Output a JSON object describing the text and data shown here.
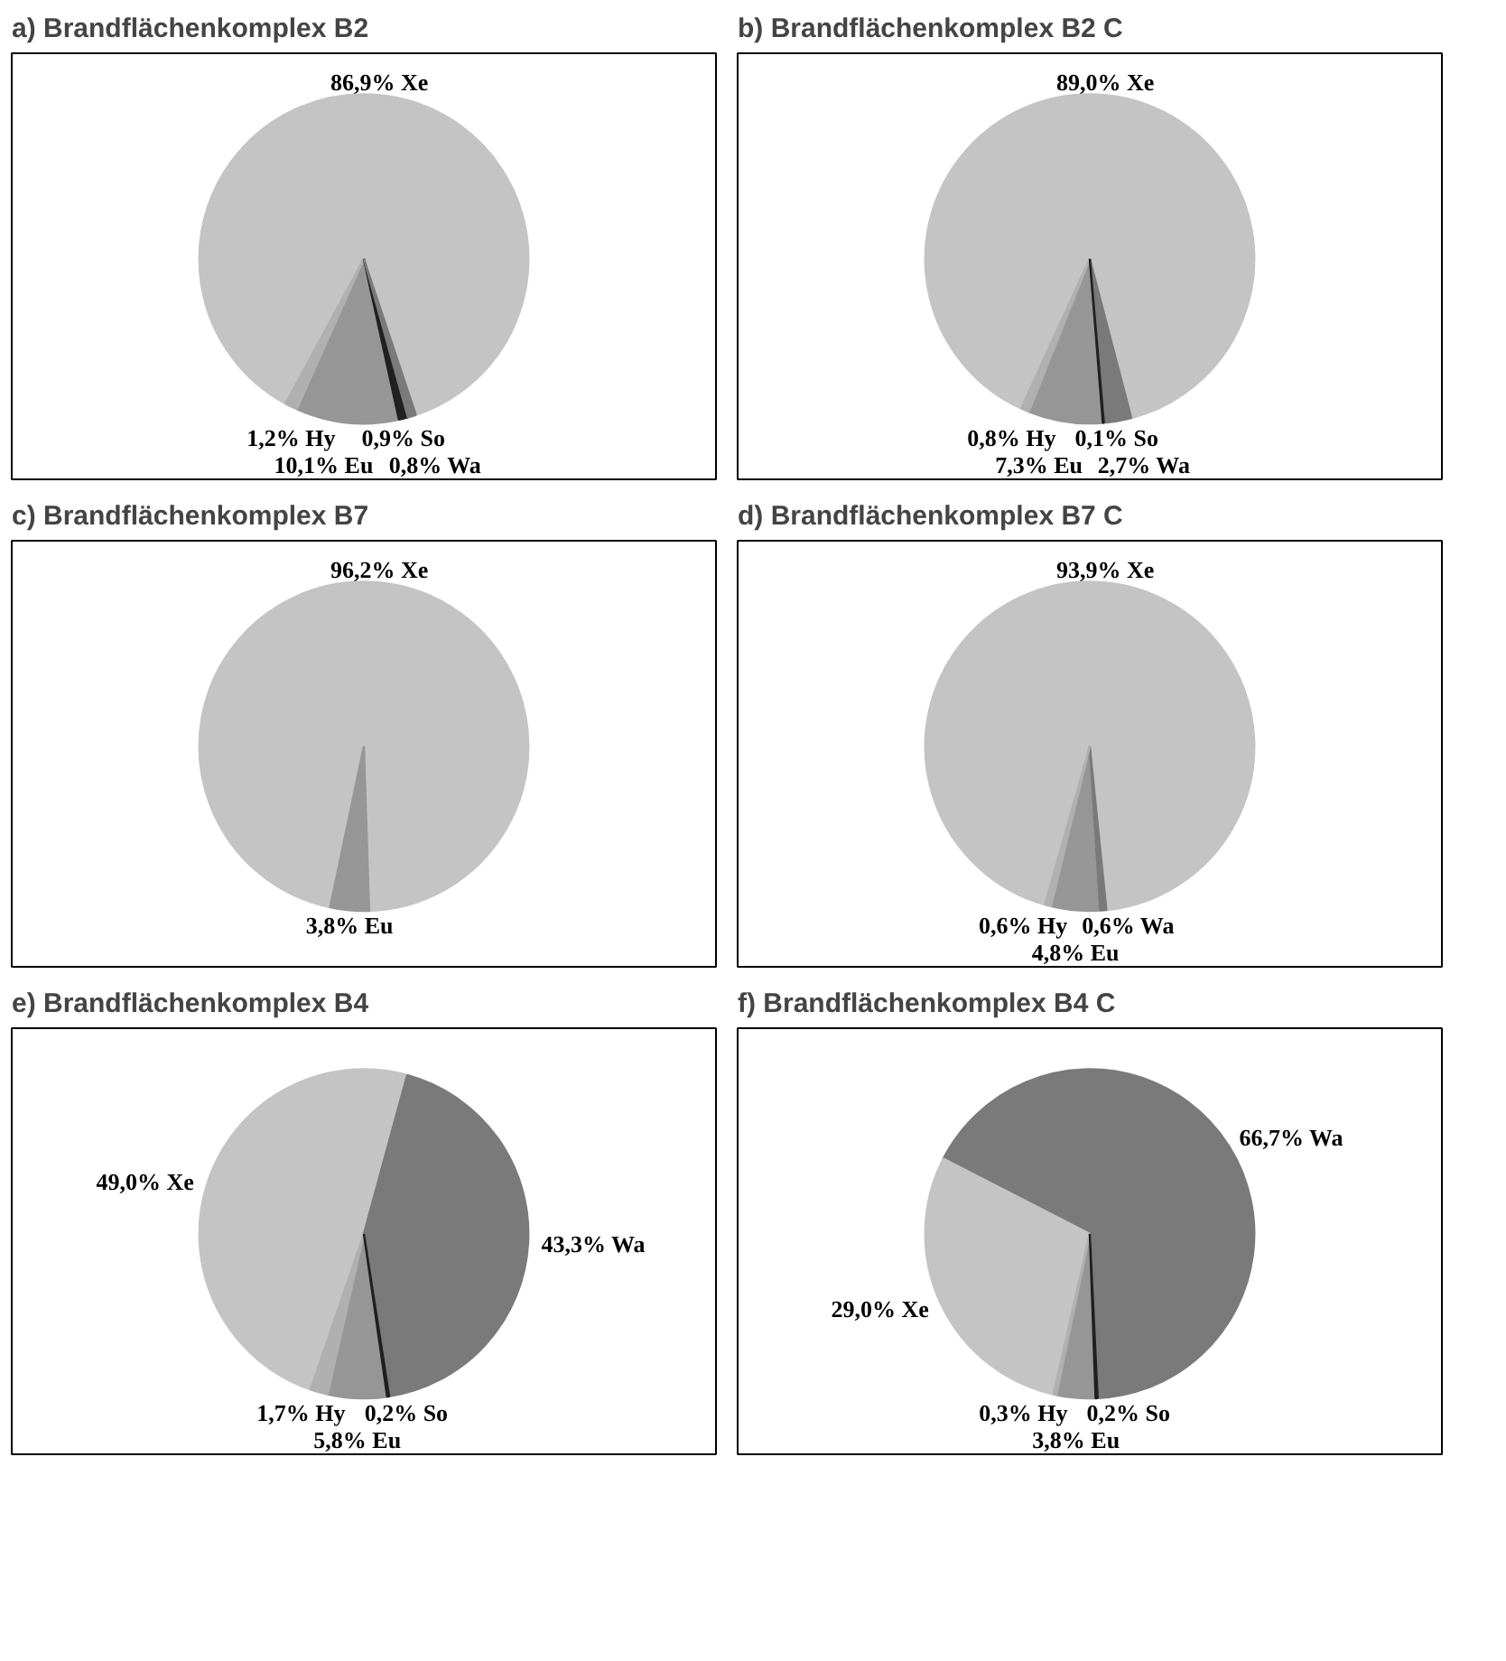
{
  "chart_data": [
    {
      "type": "pie",
      "title": "a) Brandflächenkomplex B2",
      "categories": [
        "Xe",
        "Wa",
        "So",
        "Eu",
        "Hy"
      ],
      "values": [
        86.9,
        0.8,
        0.9,
        10.1,
        1.2
      ],
      "colors": [
        "#c4c4c4",
        "#7a7a7a",
        "#202020",
        "#969696",
        "#b0b0b0"
      ],
      "value_labels": [
        "86,9%",
        "0,8%",
        "0,9%",
        "10,1%",
        "1,2%"
      ]
    },
    {
      "type": "pie",
      "title": "b) Brandflächenkomplex B2 C",
      "categories": [
        "Xe",
        "Wa",
        "So",
        "Eu",
        "Hy"
      ],
      "values": [
        89.0,
        2.7,
        0.1,
        7.3,
        0.8
      ],
      "colors": [
        "#c4c4c4",
        "#7a7a7a",
        "#202020",
        "#969696",
        "#b0b0b0"
      ],
      "value_labels": [
        "89,0%",
        "2,7%",
        "0,1%",
        "7,3%",
        "0,8%"
      ]
    },
    {
      "type": "pie",
      "title": "c) Brandflächenkomplex B7",
      "categories": [
        "Xe",
        "Eu"
      ],
      "values": [
        96.2,
        3.8
      ],
      "colors": [
        "#c4c4c4",
        "#969696"
      ],
      "value_labels": [
        "96,2%",
        "3,8%"
      ]
    },
    {
      "type": "pie",
      "title": "d) Brandflächenkomplex B7 C",
      "categories": [
        "Xe",
        "Wa",
        "Eu",
        "Hy"
      ],
      "values": [
        93.9,
        0.6,
        4.8,
        0.6
      ],
      "colors": [
        "#c4c4c4",
        "#7a7a7a",
        "#969696",
        "#b0b0b0"
      ],
      "value_labels": [
        "93,9%",
        "0,6%",
        "4,8%",
        "0,6%"
      ]
    },
    {
      "type": "pie",
      "title": "e) Brandflächenkomplex B4",
      "categories": [
        "Xe",
        "Wa",
        "So",
        "Eu",
        "Hy"
      ],
      "values": [
        49.0,
        43.3,
        0.2,
        5.8,
        1.7
      ],
      "colors": [
        "#c4c4c4",
        "#7a7a7a",
        "#202020",
        "#969696",
        "#b0b0b0"
      ],
      "value_labels": [
        "49,0%",
        "43,3%",
        "0,2%",
        "5,8%",
        "1,7%"
      ]
    },
    {
      "type": "pie",
      "title": "f) Brandflächenkomplex B4 C",
      "categories": [
        "Xe",
        "Wa",
        "So",
        "Eu",
        "Hy"
      ],
      "values": [
        29.0,
        66.7,
        0.2,
        3.8,
        0.3
      ],
      "colors": [
        "#c4c4c4",
        "#7a7a7a",
        "#202020",
        "#969696",
        "#b0b0b0"
      ],
      "value_labels": [
        "29,0%",
        "66,7%",
        "0,2%",
        "3,8%",
        "0,3%"
      ]
    }
  ]
}
